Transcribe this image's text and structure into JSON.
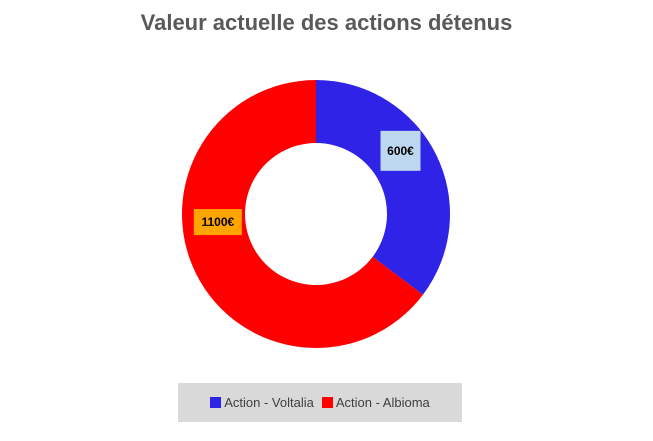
{
  "chart_data": {
    "type": "pie",
    "variant": "donut",
    "title": "Valeur actuelle des actions détenus",
    "categories": [
      "Action - Voltalia",
      "Action - Albioma"
    ],
    "values": [
      600,
      1100
    ],
    "data_labels": [
      "600€",
      "1100€"
    ],
    "colors": [
      "#2e23e6",
      "#ff0000"
    ],
    "label_backgrounds": [
      "#bdd7ee",
      "#ffa500"
    ],
    "legend_position": "bottom"
  }
}
